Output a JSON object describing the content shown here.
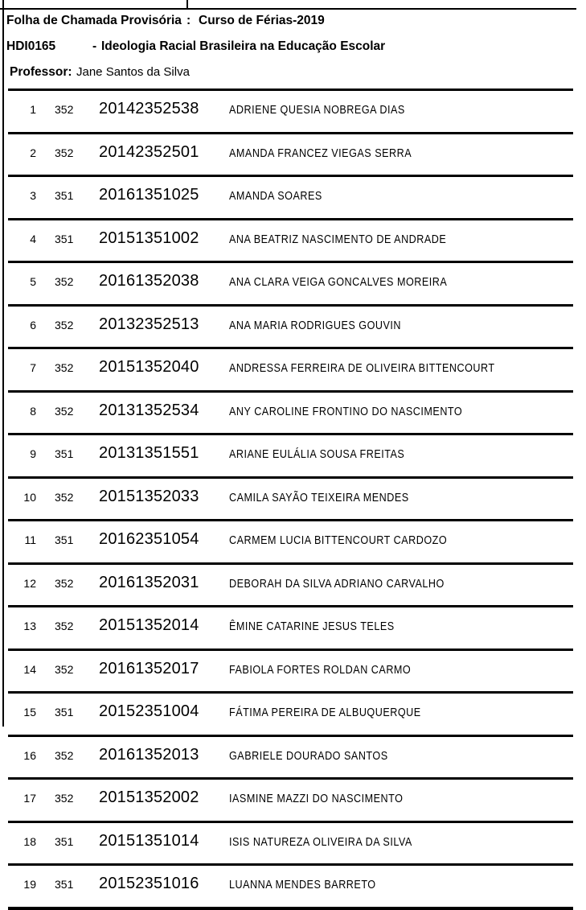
{
  "header": {
    "doc_type_label": "Folha de Chamada Provisória",
    "separator": ":",
    "term": "Curso de Férias-2019",
    "course_code": "HDI0165",
    "course_dash": "-",
    "course_name": "Ideologia Racial Brasileira na Educação Escolar",
    "professor_label": "Professor:",
    "professor_name": "Jane Santos da Silva"
  },
  "roster": {
    "rows": [
      {
        "num": "1",
        "turma": "352",
        "matricula": "20142352538",
        "name": "ADRIENE QUESIA NOBREGA DIAS"
      },
      {
        "num": "2",
        "turma": "352",
        "matricula": "20142352501",
        "name": "AMANDA FRANCEZ VIEGAS SERRA"
      },
      {
        "num": "3",
        "turma": "351",
        "matricula": "20161351025",
        "name": "AMANDA SOARES"
      },
      {
        "num": "4",
        "turma": "351",
        "matricula": "20151351002",
        "name": "ANA BEATRIZ NASCIMENTO DE ANDRADE"
      },
      {
        "num": "5",
        "turma": "352",
        "matricula": "20161352038",
        "name": "ANA CLARA VEIGA GONCALVES MOREIRA"
      },
      {
        "num": "6",
        "turma": "352",
        "matricula": "20132352513",
        "name": "ANA MARIA RODRIGUES GOUVIN"
      },
      {
        "num": "7",
        "turma": "352",
        "matricula": "20151352040",
        "name": "ANDRESSA FERREIRA DE OLIVEIRA BITTENCOURT"
      },
      {
        "num": "8",
        "turma": "352",
        "matricula": "20131352534",
        "name": "ANY CAROLINE FRONTINO DO NASCIMENTO"
      },
      {
        "num": "9",
        "turma": "351",
        "matricula": "20131351551",
        "name": "ARIANE EULÁLIA SOUSA FREITAS"
      },
      {
        "num": "10",
        "turma": "352",
        "matricula": "20151352033",
        "name": "CAMILA SAYÃO TEIXEIRA MENDES"
      },
      {
        "num": "11",
        "turma": "351",
        "matricula": "20162351054",
        "name": "CARMEM LUCIA BITTENCOURT CARDOZO"
      },
      {
        "num": "12",
        "turma": "352",
        "matricula": "20161352031",
        "name": "DEBORAH DA SILVA ADRIANO CARVALHO"
      },
      {
        "num": "13",
        "turma": "352",
        "matricula": "20151352014",
        "name": "ÊMINE CATARINE JESUS TELES"
      },
      {
        "num": "14",
        "turma": "352",
        "matricula": "20161352017",
        "name": "FABIOLA FORTES ROLDAN CARMO"
      },
      {
        "num": "15",
        "turma": "351",
        "matricula": "20152351004",
        "name": "FÁTIMA PEREIRA DE ALBUQUERQUE"
      },
      {
        "num": "16",
        "turma": "352",
        "matricula": "20161352013",
        "name": "GABRIELE DOURADO SANTOS"
      },
      {
        "num": "17",
        "turma": "352",
        "matricula": "20151352002",
        "name": "IASMINE MAZZI DO NASCIMENTO"
      },
      {
        "num": "18",
        "turma": "351",
        "matricula": "20151351014",
        "name": "ISIS NATUREZA OLIVEIRA DA SILVA"
      },
      {
        "num": "19",
        "turma": "351",
        "matricula": "20152351016",
        "name": "LUANNA MENDES BARRETO"
      }
    ]
  }
}
